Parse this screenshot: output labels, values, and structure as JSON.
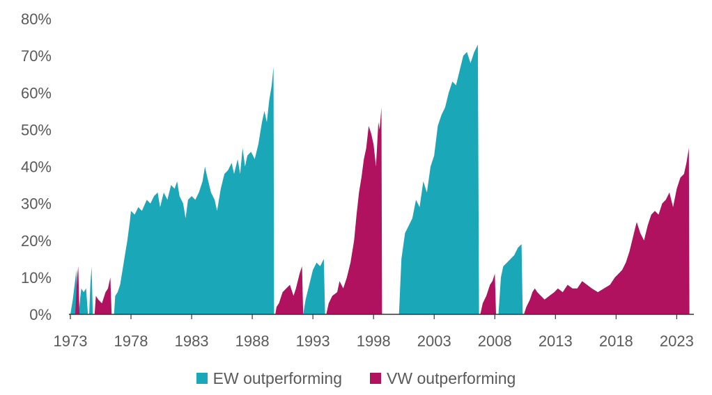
{
  "chart_data": {
    "type": "area",
    "xlabel": "",
    "ylabel": "",
    "xlim": [
      1973,
      2024.3
    ],
    "ylim": [
      0,
      80
    ],
    "x_ticks": [
      "1973",
      "1978",
      "1983",
      "1988",
      "1993",
      "1998",
      "2003",
      "2008",
      "2013",
      "2018",
      "2023"
    ],
    "y_ticks": [
      "0%",
      "10%",
      "20%",
      "30%",
      "40%",
      "50%",
      "60%",
      "70%",
      "80%"
    ],
    "grid": false,
    "legend_position": "bottom",
    "series": [
      {
        "name": "EW outperforming",
        "color": "#1aa7b8",
        "segments": [
          [
            [
              1973.0,
              0
            ],
            [
              1973.2,
              4
            ],
            [
              1973.35,
              8
            ],
            [
              1973.5,
              12
            ],
            [
              1973.55,
              0
            ]
          ],
          [
            [
              1973.7,
              0
            ],
            [
              1973.8,
              4
            ],
            [
              1973.9,
              7
            ],
            [
              1974.1,
              6
            ],
            [
              1974.3,
              7
            ],
            [
              1974.45,
              0
            ]
          ],
          [
            [
              1974.55,
              0
            ],
            [
              1974.65,
              8
            ],
            [
              1974.75,
              13
            ],
            [
              1974.85,
              0
            ]
          ],
          [
            [
              1976.6,
              0
            ],
            [
              1976.7,
              5
            ],
            [
              1976.9,
              6
            ],
            [
              1977.1,
              8
            ],
            [
              1977.3,
              12
            ],
            [
              1977.5,
              16
            ],
            [
              1977.7,
              20
            ],
            [
              1977.9,
              25
            ],
            [
              1978.0,
              28
            ],
            [
              1978.3,
              27
            ],
            [
              1978.6,
              29
            ],
            [
              1978.9,
              28
            ],
            [
              1979.3,
              31
            ],
            [
              1979.6,
              30
            ],
            [
              1979.9,
              32
            ],
            [
              1980.2,
              33
            ],
            [
              1980.4,
              29
            ],
            [
              1980.7,
              33
            ],
            [
              1981.0,
              31
            ],
            [
              1981.3,
              35
            ],
            [
              1981.6,
              34
            ],
            [
              1981.8,
              36
            ],
            [
              1982.0,
              32
            ],
            [
              1982.3,
              30
            ],
            [
              1982.5,
              26
            ],
            [
              1982.7,
              31
            ],
            [
              1983.0,
              32
            ],
            [
              1983.3,
              31
            ],
            [
              1983.6,
              33
            ],
            [
              1983.9,
              36
            ],
            [
              1984.1,
              40
            ],
            [
              1984.3,
              37
            ],
            [
              1984.6,
              33
            ],
            [
              1984.9,
              31
            ],
            [
              1985.1,
              28
            ],
            [
              1985.4,
              34
            ],
            [
              1985.7,
              38
            ],
            [
              1986.0,
              39
            ],
            [
              1986.3,
              41
            ],
            [
              1986.5,
              38
            ],
            [
              1986.8,
              42
            ],
            [
              1987.0,
              38
            ],
            [
              1987.2,
              45
            ],
            [
              1987.4,
              40
            ],
            [
              1987.6,
              43
            ],
            [
              1987.9,
              44
            ],
            [
              1988.2,
              42
            ],
            [
              1988.5,
              46
            ],
            [
              1988.8,
              52
            ],
            [
              1989.0,
              55
            ],
            [
              1989.2,
              52
            ],
            [
              1989.4,
              58
            ],
            [
              1989.6,
              62
            ],
            [
              1989.75,
              67
            ],
            [
              1989.8,
              0
            ]
          ],
          [
            [
              1992.2,
              0
            ],
            [
              1992.4,
              4
            ],
            [
              1992.7,
              8
            ],
            [
              1993.0,
              12
            ],
            [
              1993.3,
              14
            ],
            [
              1993.6,
              13
            ],
            [
              1993.9,
              15
            ],
            [
              1994.0,
              0
            ]
          ],
          [
            [
              2000.1,
              0
            ],
            [
              2000.3,
              15
            ],
            [
              2000.6,
              22
            ],
            [
              2000.9,
              24
            ],
            [
              2001.2,
              26
            ],
            [
              2001.5,
              31
            ],
            [
              2001.8,
              29
            ],
            [
              2002.1,
              36
            ],
            [
              2002.4,
              33
            ],
            [
              2002.7,
              40
            ],
            [
              2003.0,
              43
            ],
            [
              2003.3,
              51
            ],
            [
              2003.6,
              54
            ],
            [
              2003.9,
              56
            ],
            [
              2004.2,
              60
            ],
            [
              2004.5,
              63
            ],
            [
              2004.8,
              62
            ],
            [
              2005.1,
              66
            ],
            [
              2005.4,
              70
            ],
            [
              2005.7,
              71
            ],
            [
              2006.0,
              68
            ],
            [
              2006.3,
              71
            ],
            [
              2006.6,
              73
            ],
            [
              2006.7,
              0
            ]
          ],
          [
            [
              2008.3,
              0
            ],
            [
              2008.5,
              10
            ],
            [
              2008.7,
              13
            ],
            [
              2009.0,
              14
            ],
            [
              2009.3,
              15
            ],
            [
              2009.6,
              16
            ],
            [
              2009.9,
              18
            ],
            [
              2010.2,
              19
            ],
            [
              2010.3,
              0
            ]
          ]
        ]
      },
      {
        "name": "VW outperforming",
        "color": "#b0125f",
        "segments": [
          [
            [
              1973.4,
              0
            ],
            [
              1973.55,
              10
            ],
            [
              1973.65,
              13
            ],
            [
              1973.75,
              0
            ]
          ],
          [
            [
              1975.0,
              0
            ],
            [
              1975.1,
              5
            ],
            [
              1975.3,
              4
            ],
            [
              1975.6,
              3
            ],
            [
              1975.9,
              6
            ],
            [
              1976.1,
              7
            ],
            [
              1976.3,
              10
            ],
            [
              1976.4,
              0
            ]
          ],
          [
            [
              1989.9,
              0
            ],
            [
              1990.0,
              2
            ],
            [
              1990.2,
              3
            ],
            [
              1990.5,
              6
            ],
            [
              1990.8,
              7
            ],
            [
              1991.1,
              8
            ],
            [
              1991.4,
              5
            ],
            [
              1991.6,
              7
            ],
            [
              1991.9,
              11
            ],
            [
              1992.1,
              13
            ],
            [
              1992.2,
              0
            ]
          ],
          [
            [
              1994.1,
              0
            ],
            [
              1994.3,
              3
            ],
            [
              1994.6,
              5
            ],
            [
              1995.0,
              6
            ],
            [
              1995.2,
              9
            ],
            [
              1995.5,
              7
            ],
            [
              1995.8,
              10
            ],
            [
              1996.1,
              14
            ],
            [
              1996.4,
              20
            ],
            [
              1996.6,
              27
            ],
            [
              1996.8,
              33
            ],
            [
              1997.0,
              37
            ],
            [
              1997.2,
              42
            ],
            [
              1997.4,
              45
            ],
            [
              1997.6,
              51
            ],
            [
              1997.8,
              49
            ],
            [
              1998.0,
              46
            ],
            [
              1998.2,
              40
            ],
            [
              1998.4,
              52
            ],
            [
              1998.5,
              50
            ],
            [
              1998.65,
              56
            ],
            [
              1998.7,
              0
            ]
          ],
          [
            [
              2006.8,
              0
            ],
            [
              2007.0,
              3
            ],
            [
              2007.3,
              5
            ],
            [
              2007.6,
              8
            ],
            [
              2007.8,
              9
            ],
            [
              2008.0,
              11
            ],
            [
              2008.1,
              0
            ]
          ],
          [
            [
              2010.4,
              0
            ],
            [
              2010.6,
              2
            ],
            [
              2010.9,
              4
            ],
            [
              2011.1,
              6
            ],
            [
              2011.3,
              7
            ],
            [
              2011.5,
              6
            ],
            [
              2011.8,
              5
            ],
            [
              2012.1,
              4
            ],
            [
              2012.5,
              5
            ],
            [
              2012.9,
              6
            ],
            [
              2013.2,
              7
            ],
            [
              2013.6,
              6
            ],
            [
              2014.0,
              8
            ],
            [
              2014.4,
              7
            ],
            [
              2014.8,
              7
            ],
            [
              2015.2,
              9
            ],
            [
              2015.6,
              8
            ],
            [
              2016.0,
              7
            ],
            [
              2016.5,
              6
            ],
            [
              2017.0,
              7
            ],
            [
              2017.5,
              8
            ],
            [
              2017.9,
              10
            ],
            [
              2018.2,
              11
            ],
            [
              2018.5,
              12
            ],
            [
              2018.8,
              14
            ],
            [
              2019.1,
              17
            ],
            [
              2019.4,
              21
            ],
            [
              2019.7,
              25
            ],
            [
              2020.0,
              22
            ],
            [
              2020.3,
              20
            ],
            [
              2020.6,
              24
            ],
            [
              2020.9,
              27
            ],
            [
              2021.2,
              28
            ],
            [
              2021.5,
              27
            ],
            [
              2021.8,
              30
            ],
            [
              2022.1,
              31
            ],
            [
              2022.4,
              33
            ],
            [
              2022.7,
              29
            ],
            [
              2023.0,
              34
            ],
            [
              2023.3,
              37
            ],
            [
              2023.6,
              38
            ],
            [
              2023.8,
              41
            ],
            [
              2024.0,
              45
            ],
            [
              2024.05,
              0
            ]
          ]
        ]
      }
    ]
  }
}
